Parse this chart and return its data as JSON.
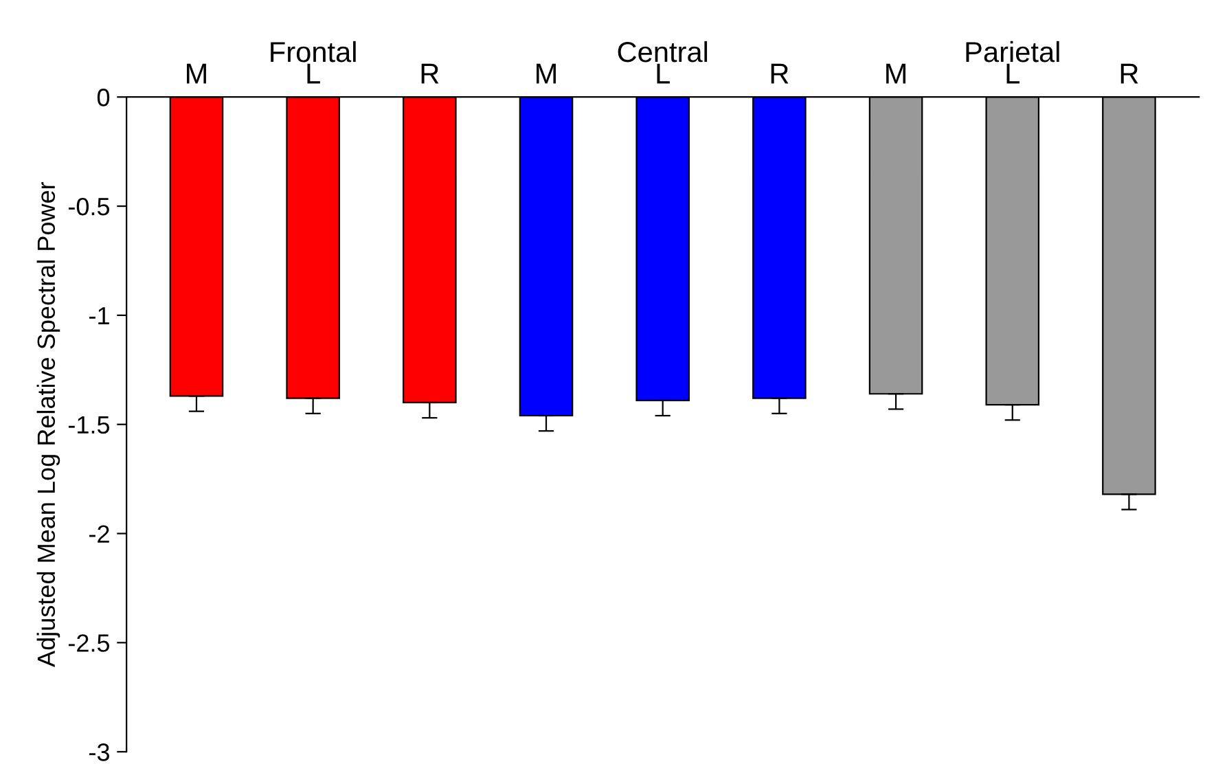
{
  "chart_data": {
    "type": "bar",
    "ylabel": "Adjusted Mean Log Relative Spectral Power",
    "categories": [
      "M",
      "L",
      "R",
      "M",
      "L",
      "R",
      "M",
      "L",
      "R"
    ],
    "values": [
      -1.37,
      -1.38,
      -1.4,
      -1.46,
      -1.39,
      -1.38,
      -1.36,
      -1.41,
      -1.82
    ],
    "colors": [
      "#ff0000",
      "#ff0000",
      "#ff0000",
      "#0000ff",
      "#0000ff",
      "#0000ff",
      "#999999",
      "#999999",
      "#999999"
    ],
    "errors": [
      [
        -1.44,
        -1.37
      ],
      [
        -1.45,
        -1.38
      ],
      [
        -1.47,
        -1.4
      ],
      [
        -1.53,
        -1.46
      ],
      [
        -1.46,
        -1.39
      ],
      [
        -1.45,
        -1.38
      ],
      [
        -1.43,
        -1.36
      ],
      [
        -1.48,
        -1.41
      ],
      [
        -1.89,
        -1.82
      ]
    ],
    "annotations": [
      "Frontal",
      "Central",
      "Parietal"
    ],
    "ylim": [
      -3,
      0
    ],
    "yticks": [
      -3,
      -2.5,
      -2,
      -1.5,
      -1,
      -0.5,
      0
    ],
    "grid": false,
    "legend": false
  }
}
